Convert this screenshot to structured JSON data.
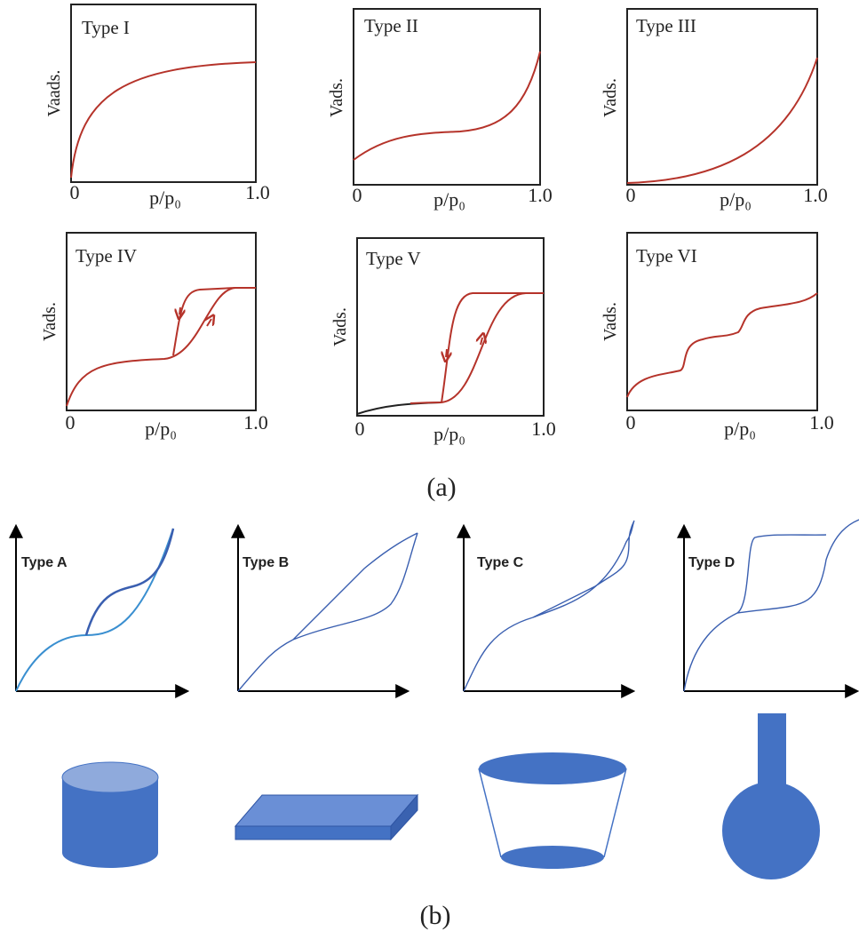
{
  "panel_a": {
    "plots": [
      {
        "title": "Type I",
        "y_label": "Vaads.",
        "x_label": "p/p₀",
        "x_start": "0",
        "x_end": "1.0"
      },
      {
        "title": "Type II",
        "y_label": "Vads.",
        "x_label": "p/p₀",
        "x_start": "0",
        "x_end": "1.0"
      },
      {
        "title": "Type III",
        "y_label": "Vads.",
        "x_label": "p/p₀",
        "x_start": "0",
        "x_end": "1.0"
      },
      {
        "title": "Type IV",
        "y_label": "Vads.",
        "x_label": "p/p₀",
        "x_start": "0",
        "x_end": "1.0"
      },
      {
        "title": "Type V",
        "y_label": "Vads.",
        "x_label": "p/p₀",
        "x_start": "0",
        "x_end": "1.0"
      },
      {
        "title": "Type VI",
        "y_label": "Vads.",
        "x_label": "p/p₀",
        "x_start": "0",
        "x_end": "1.0"
      }
    ],
    "caption": "(a)"
  },
  "panel_b": {
    "plots": [
      {
        "title": "Type A"
      },
      {
        "title": "Type B"
      },
      {
        "title": "Type C"
      },
      {
        "title": "Type D"
      }
    ],
    "caption": "(b)"
  }
}
